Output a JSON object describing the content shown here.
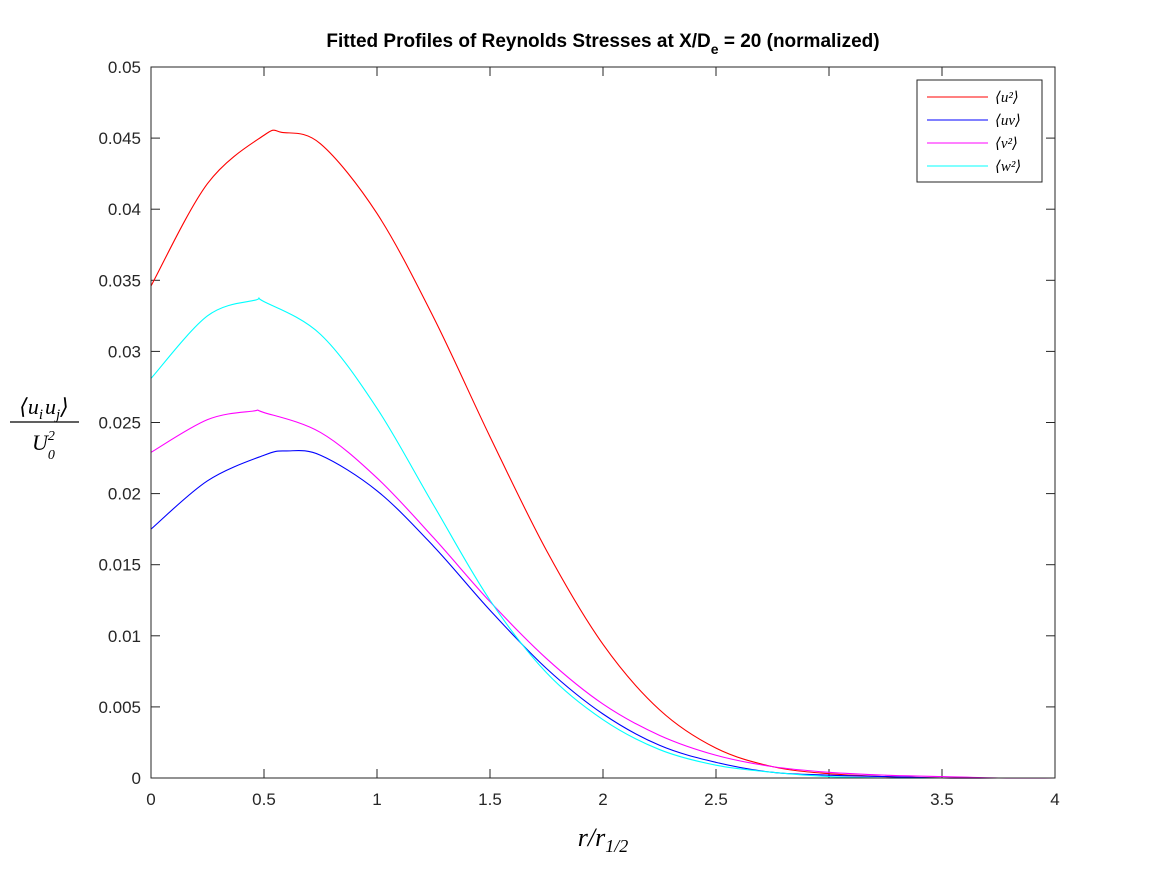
{
  "chart_data": {
    "type": "line",
    "title": {
      "prefix": "Fitted Profiles of Reynolds Stresses at X/D",
      "subscript": "e",
      "suffix": " = 20 (normalized)"
    },
    "xlabel": {
      "main": "r/r",
      "sub": "1/2"
    },
    "ylabel": {
      "numerator": "⟨u",
      "numerator_sub_i": "i",
      "numerator_mid": "u",
      "numerator_sub_j": "j",
      "numerator_end": "⟩",
      "denominator": "U",
      "denominator_sup": "2",
      "denominator_sub": "0"
    },
    "xlim": [
      0,
      4
    ],
    "ylim": [
      0,
      0.05
    ],
    "xticks": [
      0,
      0.5,
      1,
      1.5,
      2,
      2.5,
      3,
      3.5,
      4
    ],
    "xtick_labels": [
      "0",
      "0.5",
      "1",
      "1.5",
      "2",
      "2.5",
      "3",
      "3.5",
      "4"
    ],
    "yticks": [
      0,
      0.005,
      0.01,
      0.015,
      0.02,
      0.025,
      0.03,
      0.035,
      0.04,
      0.045,
      0.05
    ],
    "ytick_labels": [
      "0",
      "0.005",
      "0.01",
      "0.015",
      "0.02",
      "0.025",
      "0.03",
      "0.035",
      "0.04",
      "0.045",
      "0.05"
    ],
    "grid": false,
    "legend_position": "top-right",
    "series": [
      {
        "name": "⟨u²⟩",
        "color": "#ff0000",
        "x": [
          0,
          0.25,
          0.5,
          0.58,
          0.75,
          1.0,
          1.25,
          1.5,
          1.75,
          2.0,
          2.25,
          2.5,
          2.75,
          3.0,
          3.25,
          3.5,
          3.75,
          4.0
        ],
        "y": [
          0.0346,
          0.0418,
          0.0452,
          0.0454,
          0.0446,
          0.0397,
          0.0324,
          0.024,
          0.016,
          0.0094,
          0.0048,
          0.0021,
          0.0008,
          0.0003,
          0.0001,
          0.0,
          0.0,
          0.0
        ]
      },
      {
        "name": "⟨uv⟩",
        "color": "#0000ff",
        "x": [
          0,
          0.25,
          0.5,
          0.6,
          0.75,
          1.0,
          1.25,
          1.5,
          1.75,
          2.0,
          2.25,
          2.5,
          2.75,
          3.0,
          3.25,
          3.5,
          3.75,
          4.0
        ],
        "y": [
          0.0175,
          0.0209,
          0.0227,
          0.023,
          0.0227,
          0.0202,
          0.0163,
          0.0118,
          0.0077,
          0.0045,
          0.0023,
          0.0011,
          0.0004,
          0.0002,
          0.0001,
          0.0,
          0.0,
          0.0
        ]
      },
      {
        "name": "⟨v²⟩",
        "color": "#ff00ff",
        "x": [
          0,
          0.25,
          0.45,
          0.5,
          0.75,
          1.0,
          1.25,
          1.5,
          1.75,
          2.0,
          2.25,
          2.5,
          2.75,
          3.0,
          3.25,
          3.5,
          3.75,
          4.0
        ],
        "y": [
          0.0229,
          0.0252,
          0.0258,
          0.0257,
          0.0243,
          0.0211,
          0.0169,
          0.0124,
          0.0084,
          0.0052,
          0.003,
          0.0016,
          0.0008,
          0.0004,
          0.0002,
          0.0001,
          0.0,
          0.0
        ]
      },
      {
        "name": "⟨w²⟩",
        "color": "#00ffff",
        "x": [
          0,
          0.25,
          0.46,
          0.5,
          0.75,
          1.0,
          1.25,
          1.5,
          1.75,
          2.0,
          2.25,
          2.5,
          2.75,
          3.0,
          3.25,
          3.5,
          3.75,
          4.0
        ],
        "y": [
          0.0281,
          0.0325,
          0.0336,
          0.0335,
          0.0312,
          0.026,
          0.0192,
          0.0125,
          0.0074,
          0.0041,
          0.002,
          0.0009,
          0.0004,
          0.0001,
          0.0,
          0.0,
          0.0,
          0.0
        ]
      }
    ]
  }
}
